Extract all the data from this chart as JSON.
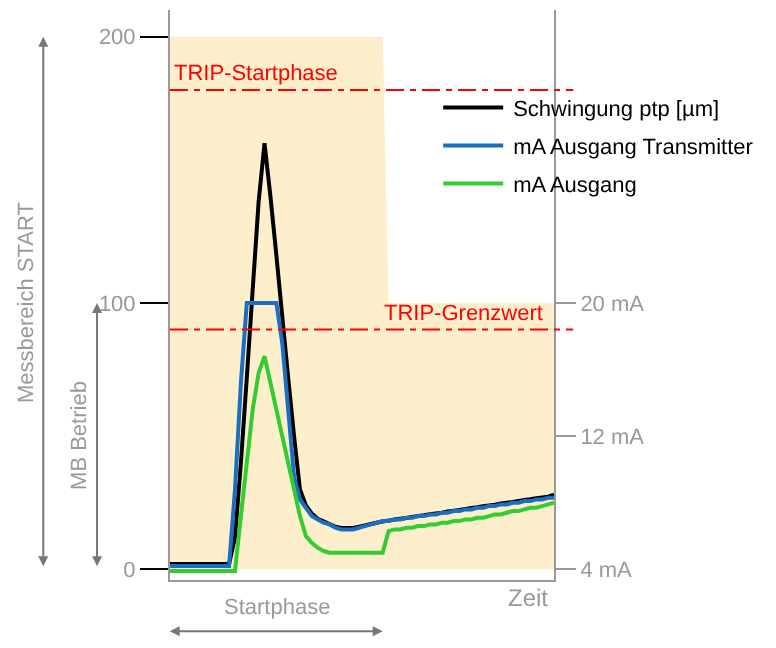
{
  "chart_data": {
    "type": "line",
    "categories": [
      null,
      null,
      null,
      null,
      null,
      null,
      null,
      null,
      null,
      null,
      null,
      null,
      null,
      null,
      null,
      null,
      null,
      null,
      null,
      null,
      null,
      null,
      null,
      null,
      null,
      null,
      null,
      null,
      null,
      null,
      null,
      null,
      null,
      null,
      null,
      null,
      null,
      null,
      null,
      null,
      null,
      null,
      null,
      null,
      null,
      null,
      null,
      null,
      null,
      null,
      null,
      null,
      null,
      null,
      null,
      null,
      null,
      null,
      null,
      null,
      null,
      null,
      null,
      null,
      null,
      null
    ],
    "series": [
      {
        "type": "area",
        "color": "#fdefcc",
        "values": [
          200,
          200,
          200,
          200,
          200,
          200,
          200,
          200,
          200,
          200,
          200,
          200,
          200,
          200,
          200,
          200,
          200,
          200,
          200,
          200,
          200,
          200,
          200,
          200,
          200,
          200,
          200,
          200,
          200,
          200,
          200,
          200,
          200,
          200,
          200,
          200,
          200,
          100,
          100,
          100,
          100,
          100,
          100,
          100,
          100,
          100,
          100,
          100,
          100,
          100,
          100,
          100,
          100,
          100,
          100,
          100,
          100,
          100,
          100,
          100,
          100,
          100,
          100,
          100,
          100,
          100
        ]
      },
      {
        "name": "Schwingung ptp [µm]",
        "color": "#000000",
        "values": [
          2,
          2,
          2,
          2,
          2,
          2,
          2,
          2,
          2,
          2,
          2,
          12,
          40,
          72,
          105,
          138,
          160,
          140,
          118,
          95,
          72,
          50,
          30,
          24,
          21,
          19,
          18,
          17,
          16,
          15.5,
          15.5,
          15.5,
          16,
          16.5,
          17,
          17.5,
          18,
          18.3,
          18.7,
          19,
          19.3,
          19.7,
          20,
          20.3,
          20.7,
          21,
          21.3,
          21.7,
          22,
          22.3,
          22.7,
          23,
          23.3,
          23.7,
          24,
          24.3,
          24.7,
          25,
          25.3,
          25.7,
          26,
          26.3,
          26.7,
          27,
          27.3,
          28
        ]
      },
      {
        "name": "mA Ausgang Transmitter",
        "color": "#1a6fc0",
        "axis": "y2",
        "values": [
          4.2,
          4.2,
          4.2,
          4.2,
          4.2,
          4.2,
          4.2,
          4.2,
          4.2,
          4.2,
          4.2,
          8.8,
          15.2,
          20,
          20,
          20,
          20,
          20,
          20,
          17.6,
          13.6,
          9.6,
          8.2,
          7.7,
          7.2,
          7,
          6.8,
          6.7,
          6.5,
          6.4,
          6.4,
          6.4,
          6.5,
          6.6,
          6.7,
          6.8,
          6.9,
          6.9,
          7,
          7,
          7.1,
          7.1,
          7.2,
          7.2,
          7.3,
          7.3,
          7.4,
          7.4,
          7.5,
          7.5,
          7.6,
          7.6,
          7.7,
          7.7,
          7.8,
          7.8,
          7.9,
          7.9,
          8,
          8,
          8.1,
          8.1,
          8.2,
          8.2,
          8.3,
          8.3
        ]
      },
      {
        "name": "mA Ausgang",
        "color": "#33cc33",
        "axis": "y2",
        "values": [
          3.9,
          3.9,
          3.9,
          3.9,
          3.9,
          3.9,
          3.9,
          3.9,
          3.9,
          3.9,
          3.9,
          3.9,
          7.2,
          10.4,
          13.6,
          15.8,
          16.8,
          15.2,
          13.6,
          12,
          10.4,
          8.8,
          7.2,
          6,
          5.6,
          5.3,
          5.1,
          5,
          5,
          5,
          5,
          5,
          5,
          5,
          5,
          5,
          5,
          6.3,
          6.4,
          6.4,
          6.5,
          6.5,
          6.6,
          6.6,
          6.7,
          6.7,
          6.8,
          6.8,
          6.9,
          6.9,
          7,
          7,
          7.1,
          7.1,
          7.2,
          7.3,
          7.3,
          7.4,
          7.5,
          7.5,
          7.6,
          7.7,
          7.7,
          7.8,
          7.9,
          8
        ]
      }
    ],
    "ylim": [
      -4,
      210
    ],
    "yticks": [
      0,
      100,
      200
    ],
    "y2lim": [
      3.36,
      37.6
    ],
    "y2ticks": [
      {
        "value": 4,
        "label": "4 mA"
      },
      {
        "value": 12,
        "label": "12 mA"
      },
      {
        "value": 20,
        "label": "20 mA"
      }
    ],
    "xlabel": "Zeit",
    "ref_lines": [
      {
        "axis": "y",
        "value": 180,
        "label": "TRIP-Startphase",
        "color": "#ff0000",
        "line_style": "dashdot"
      },
      {
        "axis": "y",
        "value": 90,
        "label": "TRIP-Grenzwert",
        "color": "#ff0000",
        "line_style": "dashdot"
      }
    ],
    "annotations": [
      "Messbereich START",
      "MB Betrieb",
      "Startphase"
    ],
    "legend": "top right",
    "marker": "none",
    "line_style": "solid"
  }
}
